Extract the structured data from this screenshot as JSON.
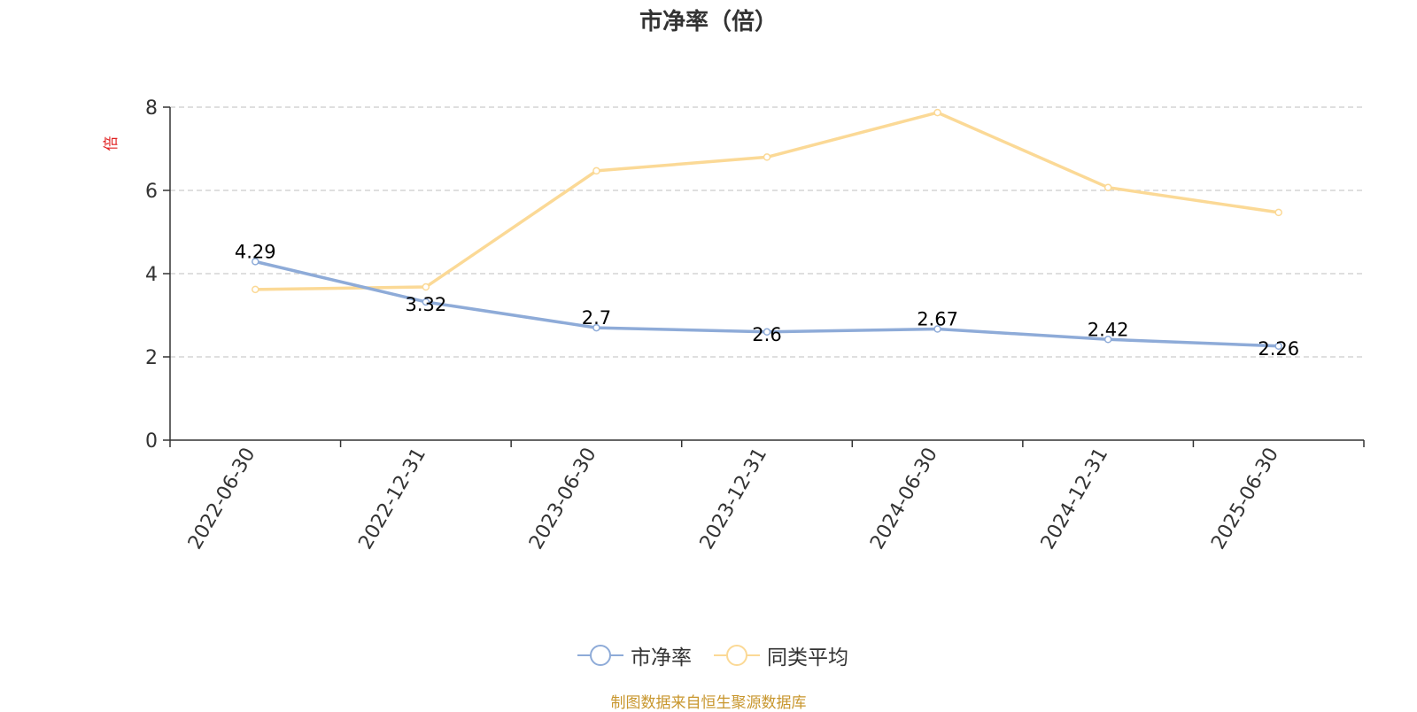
{
  "chart_data": {
    "type": "line",
    "title": "市净率（倍）",
    "ylabel": "倍",
    "xlabel": "",
    "categories": [
      "2022-06-30",
      "2022-12-31",
      "2023-06-30",
      "2023-12-31",
      "2024-06-30",
      "2024-12-31",
      "2025-06-30"
    ],
    "ylim": [
      0,
      8
    ],
    "yticks": [
      0,
      2,
      4,
      6,
      8
    ],
    "grid": true,
    "legend_position": "bottom",
    "series": [
      {
        "name": "市净率",
        "color": "#8eabd8",
        "values": [
          4.29,
          3.32,
          2.7,
          2.6,
          2.67,
          2.42,
          2.26
        ],
        "labels": [
          "4.29",
          "3.32",
          "2.7",
          "2.6",
          "2.67",
          "2.42",
          "2.26"
        ]
      },
      {
        "name": "同类平均",
        "color": "#fbd996",
        "values": [
          3.62,
          3.68,
          6.47,
          6.8,
          7.87,
          6.07,
          5.47
        ]
      }
    ]
  },
  "footer": "制图数据来自恒生聚源数据库"
}
